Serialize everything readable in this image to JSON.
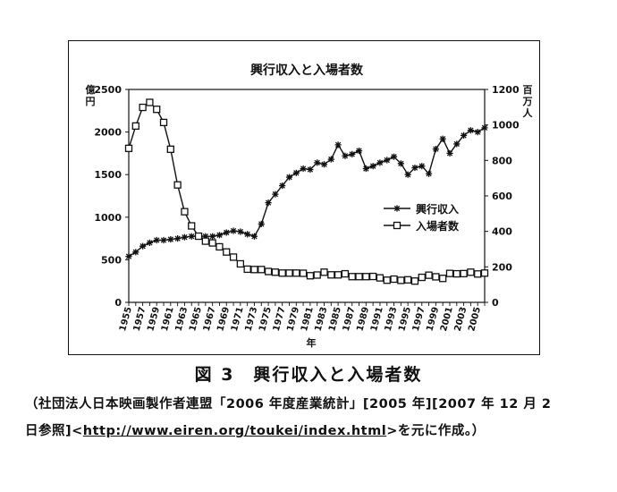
{
  "chart_data": {
    "type": "line",
    "title": "興行収入と入場者数",
    "xlabel": "年",
    "y_left_unit": "億円",
    "y_right_unit": "百万人",
    "y_left_lim": [
      0,
      2500
    ],
    "y_right_lim": [
      0,
      1200
    ],
    "y_left_ticks": [
      "0",
      "500",
      "1000",
      "1500",
      "2000",
      "2500"
    ],
    "y_right_ticks": [
      "0",
      "200",
      "400",
      "600",
      "800",
      "1000",
      "1200"
    ],
    "x_range": [
      1955,
      2006
    ],
    "x_tick_labels": [
      "1955",
      "1957",
      "1959",
      "1961",
      "1963",
      "1965",
      "1967",
      "1969",
      "1971",
      "1973",
      "1975",
      "1977",
      "1979",
      "1981",
      "1983",
      "1985",
      "1987",
      "1989",
      "1991",
      "1993",
      "1995",
      "1997",
      "1999",
      "2001",
      "2003",
      "2005"
    ],
    "legend_position": "center-right",
    "series": [
      {
        "name": "興行収入",
        "axis": "left",
        "marker": "asterisk",
        "x": [
          1955,
          1956,
          1957,
          1958,
          1959,
          1960,
          1961,
          1962,
          1963,
          1964,
          1965,
          1966,
          1967,
          1968,
          1969,
          1970,
          1971,
          1972,
          1973,
          1974,
          1975,
          1976,
          1977,
          1978,
          1979,
          1980,
          1981,
          1982,
          1983,
          1984,
          1985,
          1986,
          1987,
          1988,
          1989,
          1990,
          1991,
          1992,
          1993,
          1994,
          1995,
          1996,
          1997,
          1998,
          1999,
          2000,
          2001,
          2002,
          2003,
          2004,
          2005,
          2006
        ],
        "values": [
          540,
          590,
          660,
          700,
          730,
          730,
          740,
          750,
          765,
          775,
          780,
          775,
          775,
          790,
          820,
          840,
          830,
          800,
          775,
          920,
          1170,
          1270,
          1370,
          1470,
          1520,
          1570,
          1560,
          1640,
          1620,
          1680,
          1850,
          1720,
          1740,
          1780,
          1570,
          1600,
          1640,
          1670,
          1710,
          1630,
          1500,
          1580,
          1600,
          1510,
          1800,
          1920,
          1750,
          1860,
          1960,
          2020,
          2000,
          2050
        ]
      },
      {
        "name": "入場者数",
        "axis": "right",
        "marker": "square",
        "x": [
          1955,
          1956,
          1957,
          1958,
          1959,
          1960,
          1961,
          1962,
          1963,
          1964,
          1965,
          1966,
          1967,
          1968,
          1969,
          1970,
          1971,
          1972,
          1973,
          1974,
          1975,
          1976,
          1977,
          1978,
          1979,
          1980,
          1981,
          1982,
          1983,
          1984,
          1985,
          1986,
          1987,
          1988,
          1989,
          1990,
          1991,
          1992,
          1993,
          1994,
          1995,
          1996,
          1997,
          1998,
          1999,
          2000,
          2001,
          2002,
          2003,
          2004,
          2005,
          2006
        ],
        "values": [
          868,
          994,
          1099,
          1127,
          1088,
          1014,
          863,
          662,
          511,
          431,
          373,
          345,
          335,
          313,
          284,
          255,
          217,
          187,
          185,
          185,
          174,
          170,
          165,
          165,
          165,
          164,
          150,
          154,
          170,
          155,
          155,
          161,
          145,
          145,
          145,
          146,
          138,
          125,
          131,
          124,
          127,
          120,
          141,
          153,
          144,
          135,
          163,
          161,
          162,
          170,
          160,
          165
        ]
      }
    ]
  },
  "figure": {
    "caption": "図 3　興行収入と入場者数",
    "source_line1": "（社団法人日本映画製作者連盟「2006 年度産業統計」[2005 年][2007 年 12 月 2",
    "source_line2_pre": "日参照]<",
    "source_url": "http://www.eiren.org/toukei/index.html",
    "source_line2_post": ">を元に作成。）"
  }
}
